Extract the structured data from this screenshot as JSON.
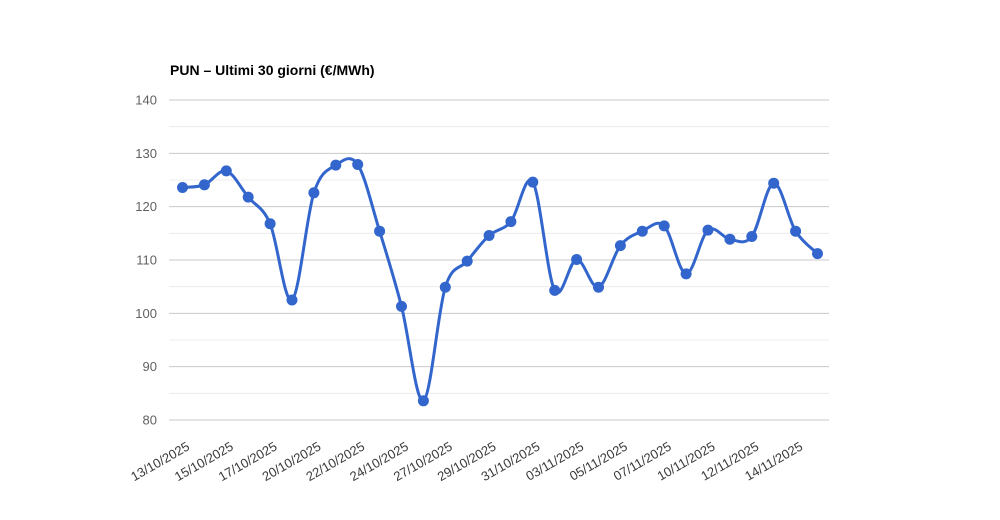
{
  "chart_data": {
    "type": "line",
    "title": "PUN – Ultimi 30 giorni (€/MWh)",
    "x_tick_labels": [
      "13/10/2025",
      "15/10/2025",
      "17/10/2025",
      "20/10/2025",
      "22/10/2025",
      "24/10/2025",
      "27/10/2025",
      "29/10/2025",
      "31/10/2025",
      "03/11/2025",
      "05/11/2025",
      "07/11/2025",
      "10/11/2025",
      "12/11/2025",
      "14/11/2025"
    ],
    "tick_every": 2,
    "values": [
      123.6,
      124.1,
      126.7,
      121.8,
      116.8,
      102.5,
      122.6,
      127.8,
      127.9,
      115.4,
      101.3,
      83.6,
      104.9,
      109.8,
      114.6,
      117.2,
      124.6,
      104.3,
      110.1,
      104.9,
      112.7,
      115.4,
      116.4,
      107.4,
      115.6,
      113.9,
      114.4,
      124.4,
      115.4,
      111.2
    ],
    "ylim": [
      80,
      140
    ],
    "y_major_step": 10,
    "y_minor_step": 5,
    "y_tick_labels": [
      "80",
      "90",
      "100",
      "110",
      "120",
      "130",
      "140"
    ],
    "grid": "on",
    "legend": "none",
    "smooth": true,
    "colors": {
      "line": "#3366cc",
      "point": "#3366cc",
      "grid_major": "#c9c9c9",
      "grid_minor": "#ececec",
      "y_label": "#616161",
      "x_label": "#3a3a3a",
      "title": "#000000",
      "background": "#ffffff"
    }
  }
}
